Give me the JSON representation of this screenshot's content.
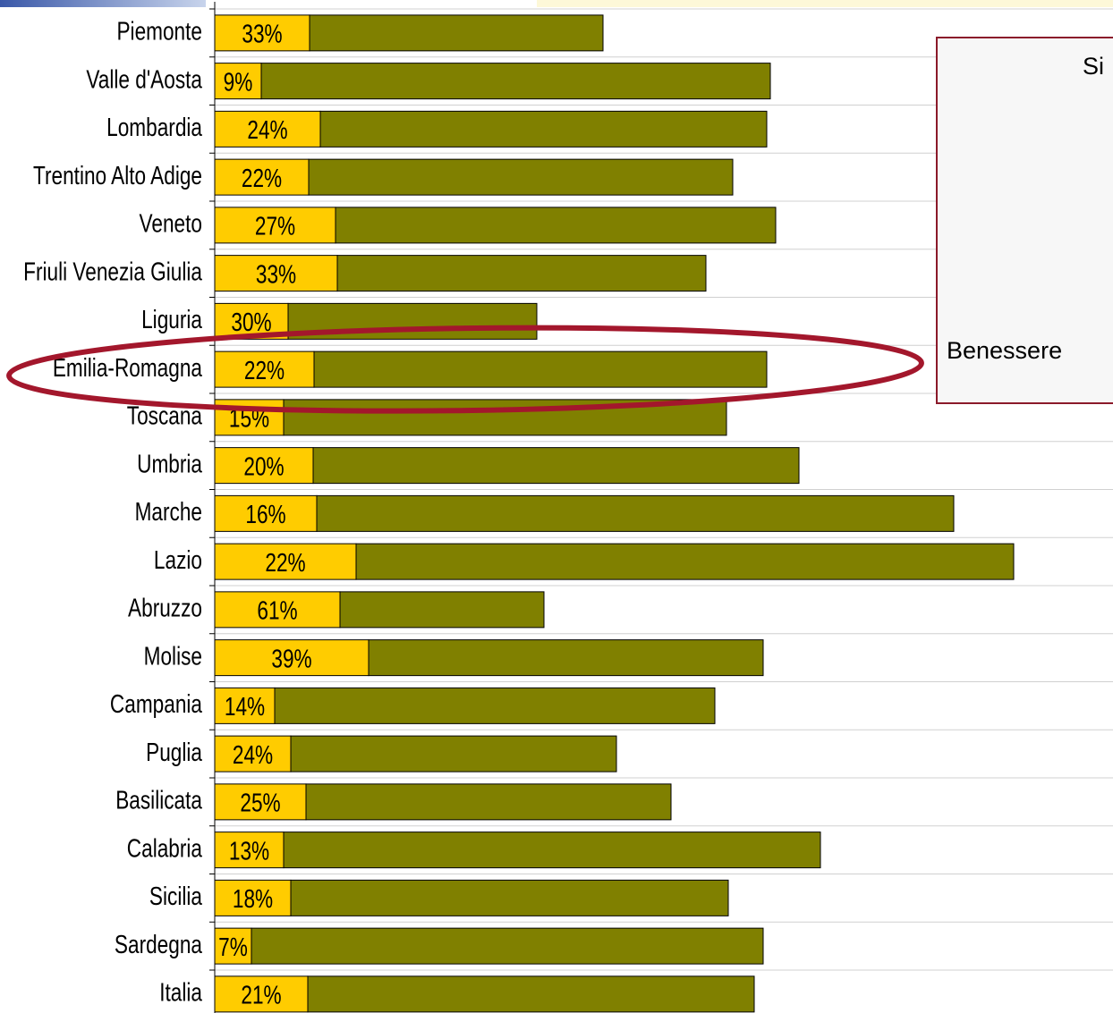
{
  "chart_data": {
    "type": "bar",
    "orientation": "horizontal",
    "stacked": true,
    "categories": [
      "Piemonte",
      "Valle d'Aosta",
      "Lombardia",
      "Trentino Alto Adige",
      "Veneto",
      "Friuli Venezia Giulia",
      "Liguria",
      "Emilia-Romagna",
      "Toscana",
      "Umbria",
      "Marche",
      "Lazio",
      "Abruzzo",
      "Molise",
      "Campania",
      "Puglia",
      "Basilicata",
      "Calabria",
      "Sicilia",
      "Sardegna",
      "Italia"
    ],
    "series": [
      {
        "color": "#ffcc00",
        "values": [
          10.6,
          5.2,
          11.8,
          10.5,
          13.5,
          13.7,
          8.2,
          11.1,
          7.7,
          11.0,
          11.4,
          15.8,
          14.0,
          17.2,
          6.7,
          8.5,
          10.2,
          7.7,
          8.5,
          4.1,
          10.4
        ],
        "value_labels": [
          "33%",
          "9%",
          "24%",
          "22%",
          "27%",
          "33%",
          "30%",
          "22%",
          "15%",
          "20%",
          "16%",
          "22%",
          "61%",
          "39%",
          "14%",
          "24%",
          "25%",
          "13%",
          "18%",
          "7%",
          "21%"
        ]
      },
      {
        "color": "#808000",
        "values": [
          32.8,
          56.9,
          49.9,
          47.4,
          49.2,
          41.2,
          27.8,
          50.6,
          49.5,
          54.3,
          71.2,
          73.5,
          22.8,
          44.1,
          49.2,
          36.4,
          40.8,
          60.0,
          48.9,
          57.2,
          49.9
        ]
      }
    ],
    "xlim": [
      0,
      100
    ],
    "grid": true,
    "legend_texts": [
      "Si",
      "Benessere"
    ],
    "highlight": "Emilia-Romagna"
  }
}
